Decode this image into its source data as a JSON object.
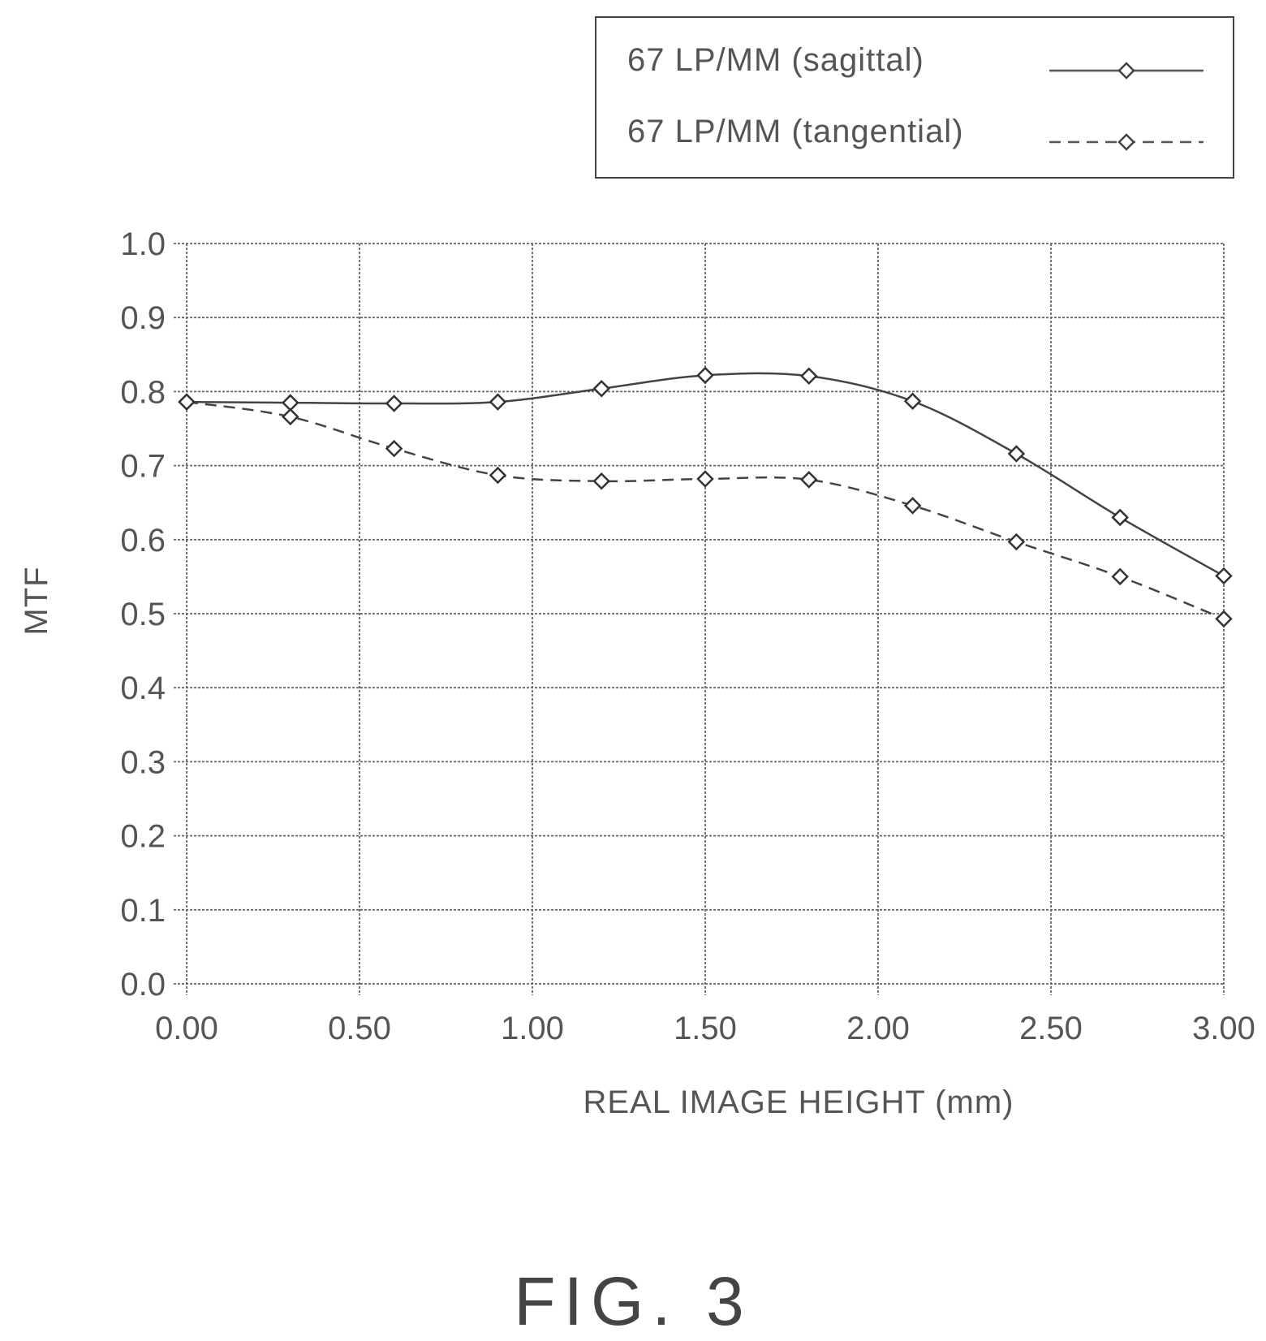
{
  "chart_data": {
    "type": "line",
    "xlabel": "REAL IMAGE HEIGHT (mm)",
    "ylabel": "MTF",
    "xlim": [
      0,
      3
    ],
    "ylim": [
      0,
      1
    ],
    "x_ticks": [
      "0.00",
      "0.50",
      "1.00",
      "1.50",
      "2.00",
      "2.50",
      "3.00"
    ],
    "y_ticks": [
      "0.0",
      "0.1",
      "0.2",
      "0.3",
      "0.4",
      "0.5",
      "0.6",
      "0.7",
      "0.8",
      "0.9",
      "1.0"
    ],
    "grid": true,
    "legend_position": "top-right",
    "x": [
      0.0,
      0.3,
      0.6,
      0.9,
      1.2,
      1.5,
      1.8,
      2.1,
      2.4,
      2.7,
      3.0
    ],
    "series": [
      {
        "name": "67 LP/MM (sagittal)",
        "style": "solid",
        "values": [
          0.786,
          0.785,
          0.784,
          0.786,
          0.804,
          0.822,
          0.821,
          0.787,
          0.716,
          0.63,
          0.551
        ]
      },
      {
        "name": "67 LP/MM (tangential)",
        "style": "dashed",
        "values": [
          0.786,
          0.766,
          0.723,
          0.687,
          0.679,
          0.682,
          0.681,
          0.646,
          0.597,
          0.55,
          0.493
        ]
      }
    ]
  },
  "caption": "FIG. 3"
}
